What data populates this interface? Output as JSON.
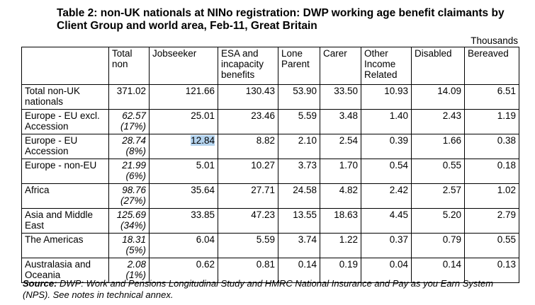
{
  "title": "Table 2: non-UK nationals at NINo registration: DWP working age benefit claimants by Client Group and world area, Feb-11, Great Britain",
  "units": "Thousands",
  "table": {
    "header": [
      "",
      "Total non",
      "Jobseeker",
      "ESA and incapacity benefits",
      "Lone Parent",
      "Carer",
      "Other Income Related",
      "Disabled",
      "Bereaved"
    ],
    "rows": [
      {
        "label": "Total non-UK nationals",
        "total": "371.02",
        "share": null,
        "values": [
          "121.66",
          "130.43",
          "53.90",
          "33.50",
          "10.93",
          "14.09",
          "6.51"
        ]
      },
      {
        "label": "Europe - EU excl. Accession",
        "total": "62.57",
        "share": "(17%)",
        "values": [
          "25.01",
          "23.46",
          "5.59",
          "3.48",
          "1.40",
          "2.43",
          "1.19"
        ]
      },
      {
        "label": "Europe - EU Accession",
        "total": "28.74",
        "share": "(8%)",
        "values": [
          "12.84",
          "8.82",
          "2.10",
          "2.54",
          "0.39",
          "1.66",
          "0.38"
        ]
      },
      {
        "label": "Europe - non-EU",
        "total": "21.99",
        "share": "(6%)",
        "values": [
          "5.01",
          "10.27",
          "3.73",
          "1.70",
          "0.54",
          "0.55",
          "0.18"
        ]
      },
      {
        "label": "Africa",
        "total": "98.76",
        "share": "(27%)",
        "values": [
          "35.64",
          "27.71",
          "24.58",
          "4.82",
          "2.42",
          "2.57",
          "1.02"
        ]
      },
      {
        "label": "Asia and Middle East",
        "total": "125.69",
        "share": "(34%)",
        "values": [
          "33.85",
          "47.23",
          "13.55",
          "18.63",
          "4.45",
          "5.20",
          "2.79"
        ]
      },
      {
        "label": "The Americas",
        "total": "18.31",
        "share": "(5%)",
        "values": [
          "6.04",
          "5.59",
          "3.74",
          "1.22",
          "0.37",
          "0.79",
          "0.55"
        ]
      },
      {
        "label": "Australasia and Oceania",
        "total": "2.08",
        "share": "(1%)",
        "values": [
          "0.62",
          "0.81",
          "0.14",
          "0.19",
          "0.04",
          "0.14",
          "0.13"
        ]
      }
    ]
  },
  "source": {
    "label": "Source:",
    "text": "DWP: Work and Pensions Longitudinal Study and HMRC National Insurance and Pay as you Earn System (NPS). See notes in technical annex."
  }
}
